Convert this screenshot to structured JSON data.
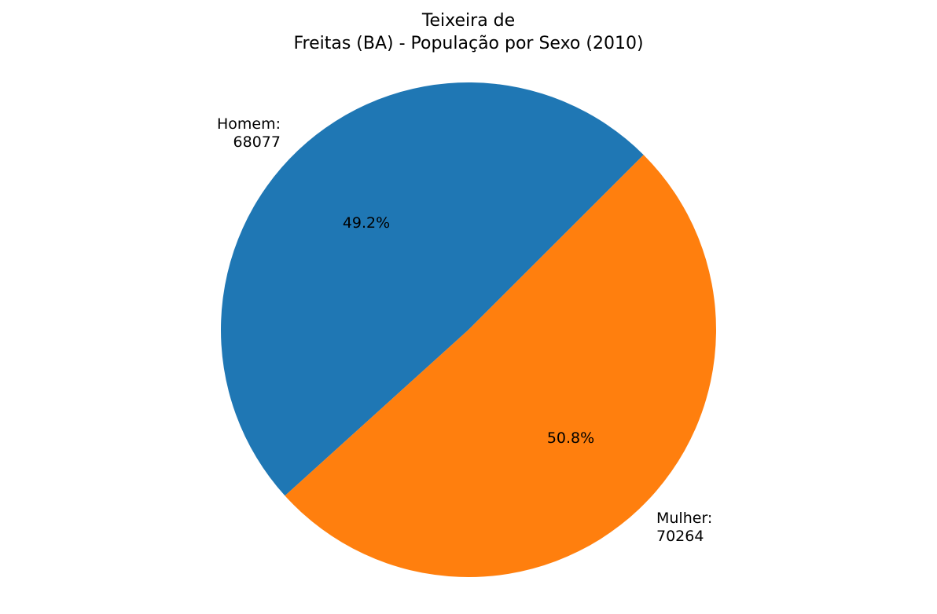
{
  "chart_data": {
    "type": "pie",
    "title_line1": "Teixeira de",
    "title_line2": "Freitas (BA) - População por Sexo (2010)",
    "slices": [
      {
        "label": "Homem:",
        "value_text": "68077",
        "value": 68077,
        "percent_label": "49.2%",
        "color": "#1f77b4"
      },
      {
        "label": "Mulher:",
        "value_text": "70264",
        "value": 70264,
        "percent_label": "50.8%",
        "color": "#ff7f0e"
      }
    ],
    "start_angle_deg": 45,
    "counterclockwise": true
  }
}
